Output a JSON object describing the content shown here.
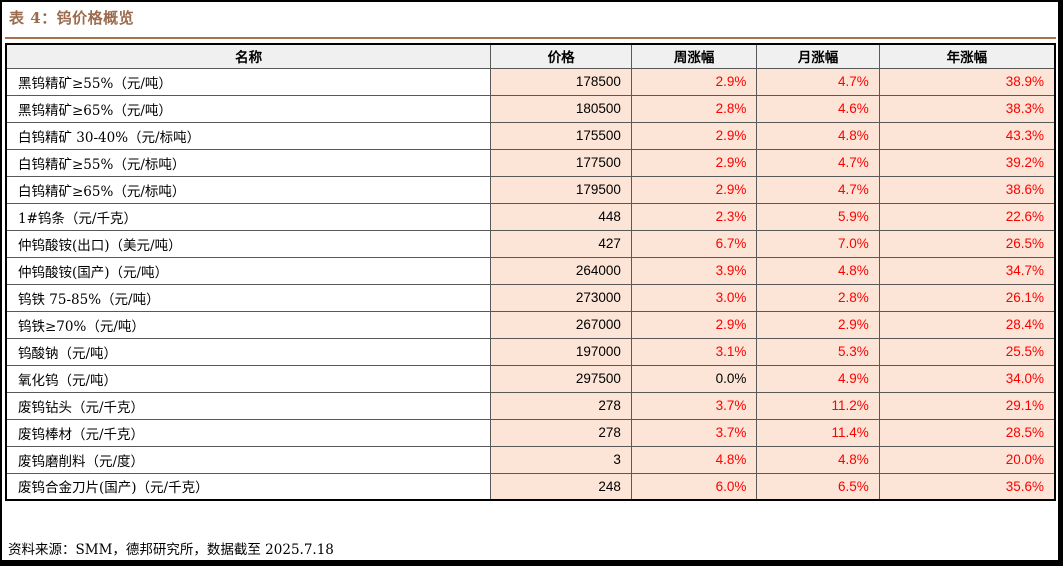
{
  "page": {
    "title": "表 4：钨价格概览",
    "source_note": "资料来源：SMM，德邦研究所，数据截至 2025.7.18"
  },
  "colors": {
    "title_brown": "#9c6b4e",
    "rule_brown": "#a4734e",
    "cell_salmon": "#fce4d6",
    "header_gray": "#f0f0f0",
    "percent_red": "#ff0000",
    "grid_line": "#595959",
    "outer_border": "#000000"
  },
  "table": {
    "headers": [
      "名称",
      "价格",
      "周涨幅",
      "月涨幅",
      "年涨幅"
    ],
    "rows": [
      {
        "name": "黑钨精矿≥55%（元/吨）",
        "price": "178500",
        "week": "2.9%",
        "month": "4.7%",
        "year": "38.9%"
      },
      {
        "name": "黑钨精矿≥65%（元/吨）",
        "price": "180500",
        "week": "2.8%",
        "month": "4.6%",
        "year": "38.3%"
      },
      {
        "name": "白钨精矿 30-40%（元/标吨）",
        "price": "175500",
        "week": "2.9%",
        "month": "4.8%",
        "year": "43.3%"
      },
      {
        "name": "白钨精矿≥55%（元/标吨）",
        "price": "177500",
        "week": "2.9%",
        "month": "4.7%",
        "year": "39.2%"
      },
      {
        "name": "白钨精矿≥65%（元/标吨）",
        "price": "179500",
        "week": "2.9%",
        "month": "4.7%",
        "year": "38.6%"
      },
      {
        "name": "1#钨条（元/千克）",
        "price": "448",
        "week": "2.3%",
        "month": "5.9%",
        "year": "22.6%"
      },
      {
        "name": "仲钨酸铵(出口)（美元/吨）",
        "price": "427",
        "week": "6.7%",
        "month": "7.0%",
        "year": "26.5%"
      },
      {
        "name": "仲钨酸铵(国产)（元/吨）",
        "price": "264000",
        "week": "3.9%",
        "month": "4.8%",
        "year": "34.7%"
      },
      {
        "name": "钨铁 75-85%（元/吨）",
        "price": "273000",
        "week": "3.0%",
        "month": "2.8%",
        "year": "26.1%"
      },
      {
        "name": "钨铁≥70%（元/吨）",
        "price": "267000",
        "week": "2.9%",
        "month": "2.9%",
        "year": "28.4%"
      },
      {
        "name": "钨酸钠（元/吨）",
        "price": "197000",
        "week": "3.1%",
        "month": "5.3%",
        "year": "25.5%"
      },
      {
        "name": "氧化钨（元/吨）",
        "price": "297500",
        "week": "0.0%",
        "month": "4.9%",
        "year": "34.0%"
      },
      {
        "name": "废钨钻头（元/千克）",
        "price": "278",
        "week": "3.7%",
        "month": "11.2%",
        "year": "29.1%"
      },
      {
        "name": "废钨棒材（元/千克）",
        "price": "278",
        "week": "3.7%",
        "month": "11.4%",
        "year": "28.5%"
      },
      {
        "name": "废钨磨削料（元/度）",
        "price": "3",
        "week": "4.8%",
        "month": "4.8%",
        "year": "20.0%"
      },
      {
        "name": "废钨合金刀片(国产)（元/千克）",
        "price": "248",
        "week": "6.0%",
        "month": "6.5%",
        "year": "35.6%"
      }
    ]
  }
}
